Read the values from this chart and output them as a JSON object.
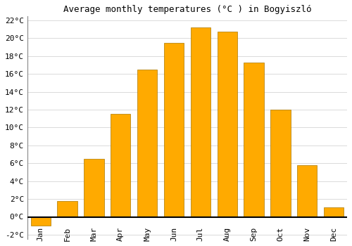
{
  "title": "Average monthly temperatures (°C ) in Bogyiszló",
  "months": [
    "Jan",
    "Feb",
    "Mar",
    "Apr",
    "May",
    "Jun",
    "Jul",
    "Aug",
    "Sep",
    "Oct",
    "Nov",
    "Dec"
  ],
  "values": [
    -1.0,
    1.8,
    6.5,
    11.5,
    16.5,
    19.5,
    21.2,
    20.7,
    17.3,
    12.0,
    5.8,
    1.1
  ],
  "bar_color": "#FFAA00",
  "bar_edge_color": "#AA7700",
  "background_color": "#FFFFFF",
  "grid_color": "#CCCCCC",
  "ylim": [
    -2.5,
    22.5
  ],
  "ytick_vals": [
    -2,
    0,
    2,
    4,
    6,
    8,
    10,
    12,
    14,
    16,
    18,
    20,
    22
  ],
  "title_fontsize": 9,
  "tick_fontsize": 8,
  "zero_line_color": "#000000",
  "bar_width": 0.75,
  "left_spine_color": "#888888"
}
